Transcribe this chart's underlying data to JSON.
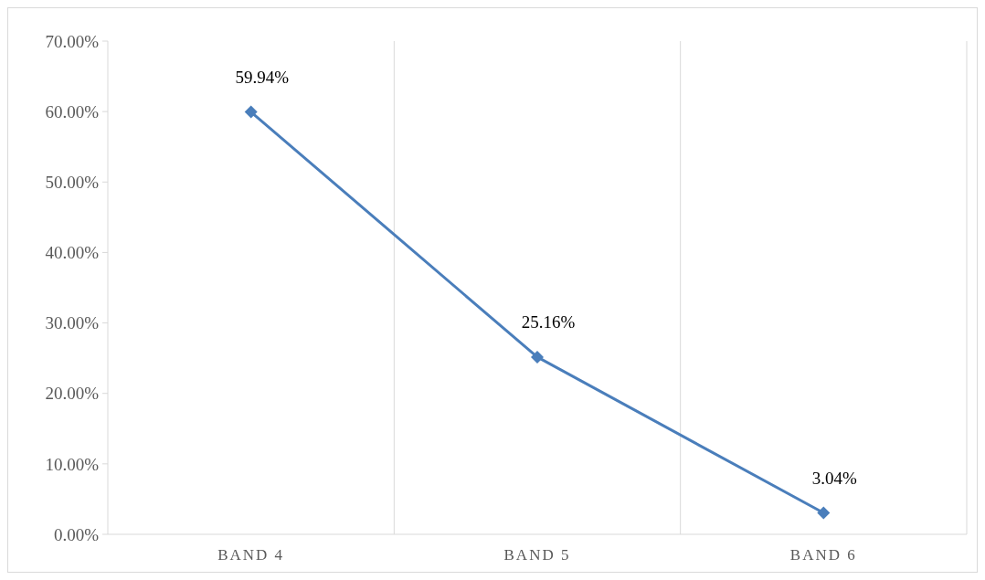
{
  "chart_data": {
    "type": "line",
    "categories": [
      "BAND 4",
      "BAND 5",
      "BAND 6"
    ],
    "series": [
      {
        "color": "#4a7ebb",
        "values": [
          59.94,
          25.16,
          3.04
        ],
        "value_labels": [
          "59.94%",
          "25.16%",
          "3.04%"
        ]
      }
    ],
    "ylim": [
      0,
      70
    ],
    "yticks": [
      {
        "value": 0,
        "label": "0.00%"
      },
      {
        "value": 10,
        "label": "10.00%"
      },
      {
        "value": 20,
        "label": "20.00%"
      },
      {
        "value": 30,
        "label": "30.00%"
      },
      {
        "value": 40,
        "label": "40.00%"
      },
      {
        "value": 50,
        "label": "50.00%"
      },
      {
        "value": 60,
        "label": "60.00%"
      },
      {
        "value": 70,
        "label": "70.00%"
      }
    ],
    "grid": "x",
    "marker": "diamond",
    "line_style": "solid"
  }
}
